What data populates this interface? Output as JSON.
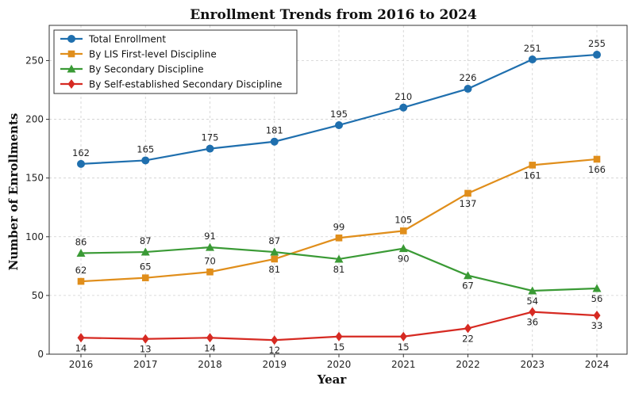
{
  "chart_data": {
    "type": "line",
    "title": "Enrollment Trends from 2016 to 2024",
    "xlabel": "Year",
    "ylabel": "Number of Enrollments",
    "categories": [
      "2016",
      "2017",
      "2018",
      "2019",
      "2020",
      "2021",
      "2022",
      "2023",
      "2024"
    ],
    "ylim": [
      0,
      280
    ],
    "yticks": [
      0,
      50,
      100,
      150,
      200,
      250
    ],
    "grid": true,
    "legend_position": "top-left",
    "series": [
      {
        "name": "Total Enrollment",
        "color": "#1f6fae",
        "marker": "circle",
        "values": [
          162,
          165,
          175,
          181,
          195,
          210,
          226,
          251,
          255
        ],
        "label_pos": "above"
      },
      {
        "name": "By LIS First-level Discipline",
        "color": "#e08e1b",
        "marker": "square",
        "values": [
          62,
          65,
          70,
          81,
          99,
          105,
          137,
          161,
          166
        ],
        "label_pos": [
          "above",
          "above",
          "above",
          "below",
          "above",
          "above",
          "below",
          "below",
          "below"
        ]
      },
      {
        "name": "By Secondary Discipline",
        "color": "#3a9a35",
        "marker": "triangle",
        "values": [
          86,
          87,
          91,
          87,
          81,
          90,
          67,
          54,
          56
        ],
        "label_pos": [
          "above",
          "above",
          "above",
          "above",
          "below",
          "below",
          "below",
          "below",
          "below"
        ]
      },
      {
        "name": "By Self-established Secondary Discipline",
        "color": "#d62a22",
        "marker": "diamond",
        "values": [
          14,
          13,
          14,
          12,
          15,
          15,
          22,
          36,
          33
        ],
        "label_pos": "below"
      }
    ]
  }
}
